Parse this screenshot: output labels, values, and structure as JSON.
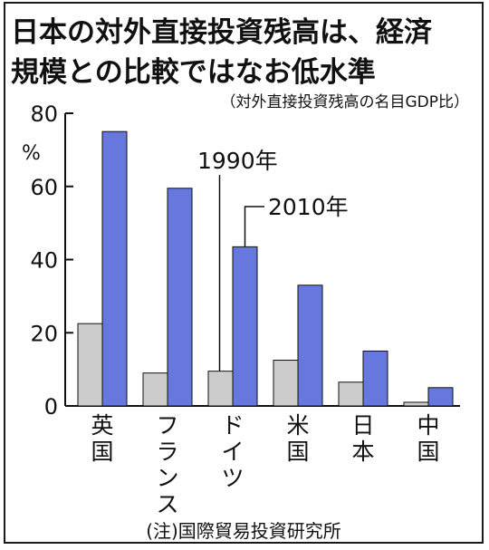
{
  "title_line1": "日本の対外直接投資残高は、経済",
  "title_line2": "規模との比較ではなお低水準",
  "subtitle": "（対外直接投資残高の名目GDP比）",
  "source": "(注)国際貿易投資研究所",
  "colors": {
    "series_1990": "#cccccc",
    "series_2010": "#6677dd",
    "axis": "#111111"
  },
  "chart_data": {
    "type": "bar",
    "title": "日本の対外直接投資残高は、経済規模との比較ではなお低水準",
    "subtitle": "（対外直接投資残高の名目GDP比）",
    "ylabel": "%",
    "xlabel": "",
    "ylim": [
      0,
      80
    ],
    "yticks": [
      0,
      20,
      40,
      60,
      80
    ],
    "grid": false,
    "categories": [
      "英国",
      "フランス",
      "ドイツ",
      "米国",
      "日本",
      "中国"
    ],
    "series": [
      {
        "name": "1990年",
        "values": [
          22.5,
          9,
          9.5,
          12.5,
          6.5,
          1
        ]
      },
      {
        "name": "2010年",
        "values": [
          75,
          59.5,
          43.5,
          33,
          15,
          5
        ]
      }
    ],
    "annotations": [
      "1990年",
      "2010年"
    ]
  }
}
